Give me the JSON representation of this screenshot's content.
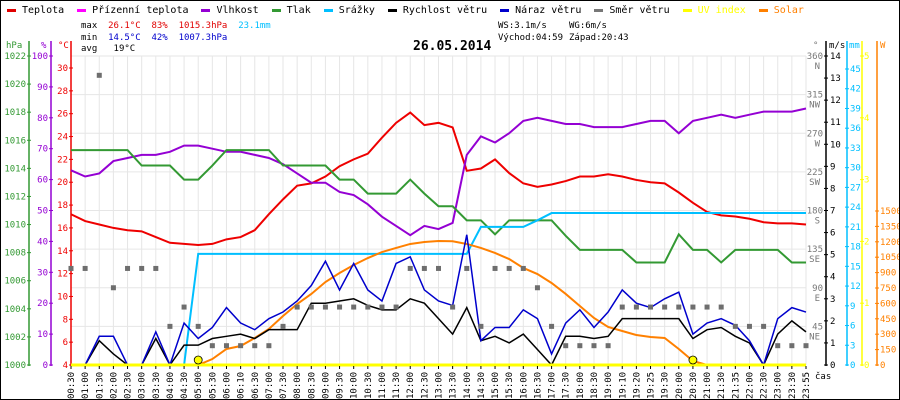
{
  "legend": [
    {
      "label": "Teplota",
      "color": "#e00000"
    },
    {
      "label": "Přízenní teplota",
      "color": "#ff00ff"
    },
    {
      "label": "Vlhkost",
      "color": "#9400d3"
    },
    {
      "label": "Tlak",
      "color": "#339933"
    },
    {
      "label": "Srážky",
      "color": "#00bfff"
    },
    {
      "label": "Rychlost větru",
      "color": "#000000"
    },
    {
      "label": "Náraz větru",
      "color": "#0000cc"
    },
    {
      "label": "Směr větru",
      "color": "#777777"
    },
    {
      "label": "UV index",
      "color": "#ffff00"
    },
    {
      "label": "Solar",
      "color": "#ff8000"
    }
  ],
  "stats": {
    "max_label": "max",
    "max_temp": "26.1°C",
    "max_hum": "83%",
    "max_press": "1015.3hPa",
    "rain_total": "23.1mm",
    "min_label": "min",
    "min_temp": "14.5°C",
    "min_hum": "42%",
    "min_press": "1007.3hPa",
    "avg_label": "avg",
    "avg_temp": "19°C",
    "ws": "WS:3.1m/s",
    "wg": "WG:6m/s",
    "sunrise": "Východ:04:59",
    "sunset": "Západ:20:43"
  },
  "chart_data": {
    "type": "line",
    "title": "26.05.2014",
    "xlabel": "čas",
    "axes": {
      "pressure": {
        "unit": "hPa",
        "range": [
          1000,
          1022
        ],
        "ticks": [
          "1000",
          "1002",
          "1004",
          "1006",
          "1008",
          "1010",
          "1012",
          "1014",
          "1016",
          "1018",
          "1020",
          "1022"
        ]
      },
      "humidity": {
        "unit": "%",
        "range": [
          0,
          100
        ],
        "ticks": [
          "0",
          "10",
          "20",
          "30",
          "40",
          "50",
          "60",
          "70",
          "80",
          "90",
          "100"
        ]
      },
      "temperature": {
        "unit": "°C",
        "range": [
          4,
          31
        ],
        "ticks": [
          "4",
          "6",
          "8",
          "10",
          "12",
          "14",
          "16",
          "18",
          "20",
          "22",
          "24",
          "26",
          "28",
          "30"
        ]
      },
      "direction": {
        "unit": "°",
        "range": [
          0,
          360
        ],
        "ticks": [
          "45",
          "90",
          "135",
          "180",
          "225",
          "270",
          "315",
          "360"
        ],
        "compass": [
          "NE",
          "E",
          "SE",
          "S",
          "SW",
          "W",
          "NW",
          "N"
        ]
      },
      "wind": {
        "unit": "m/s",
        "range": [
          0,
          14
        ],
        "ticks": [
          "0",
          "1",
          "2",
          "3",
          "4",
          "5",
          "6",
          "7",
          "8",
          "9",
          "10",
          "11",
          "12",
          "13",
          "14"
        ]
      },
      "rain": {
        "unit": "mm",
        "range": [
          0,
          47
        ],
        "ticks": [
          "0",
          "3",
          "6",
          "9",
          "12",
          "15",
          "18",
          "21",
          "24",
          "27",
          "30",
          "33",
          "36",
          "39",
          "42",
          "45"
        ]
      },
      "uv": {
        "unit": "",
        "range": [
          0,
          5
        ],
        "ticks": [
          "0",
          "1",
          "2",
          "3",
          "4",
          "5"
        ]
      },
      "solar": {
        "unit": "W",
        "range": [
          0,
          3010
        ],
        "ticks": [
          "0",
          "150",
          "300",
          "450",
          "600",
          "750",
          "900",
          "1050",
          "1200",
          "1350",
          "1500"
        ]
      }
    },
    "x": [
      "00:30",
      "01:00",
      "01:30",
      "02:00",
      "02:30",
      "03:00",
      "03:30",
      "04:00",
      "04:30",
      "05:00",
      "05:30",
      "06:00",
      "06:10",
      "06:30",
      "07:00",
      "07:30",
      "08:00",
      "08:30",
      "09:00",
      "09:30",
      "10:00",
      "10:30",
      "11:00",
      "11:30",
      "12:00",
      "12:30",
      "13:00",
      "13:30",
      "14:00",
      "14:30",
      "15:00",
      "15:30",
      "16:00",
      "16:30",
      "17:00",
      "17:30",
      "18:00",
      "18:30",
      "19:00",
      "19:10",
      "19:20",
      "19:25",
      "19:30",
      "20:00",
      "20:30",
      "21:00",
      "21:30",
      "21:35",
      "22:00",
      "22:30",
      "23:00",
      "23:30",
      "23:55"
    ],
    "series": [
      {
        "name": "Teplota",
        "axis": "temperature",
        "color": "#ee0000",
        "values": [
          17.2,
          16.6,
          16.3,
          16.0,
          15.8,
          15.7,
          15.2,
          14.7,
          14.6,
          14.5,
          14.6,
          15.0,
          15.2,
          15.8,
          17.2,
          18.5,
          19.7,
          19.9,
          20.5,
          21.4,
          22.0,
          22.5,
          23.9,
          25.2,
          26.1,
          25.0,
          25.2,
          24.8,
          21.0,
          21.2,
          22.0,
          20.8,
          19.9,
          19.6,
          19.8,
          20.1,
          20.5,
          20.5,
          20.7,
          20.5,
          20.2,
          20.0,
          19.9,
          19.1,
          18.2,
          17.4,
          17.1,
          17.0,
          16.8,
          16.5,
          16.4,
          16.4,
          16.3
        ]
      },
      {
        "name": "Vlhkost",
        "axis": "humidity",
        "color": "#9400d3",
        "values": [
          63,
          61,
          62,
          66,
          67,
          68,
          68,
          69,
          71,
          71,
          70,
          69,
          69,
          68,
          67,
          65,
          62,
          59,
          59,
          56,
          55,
          52,
          48,
          45,
          42,
          45,
          44,
          46,
          68,
          74,
          72,
          75,
          79,
          80,
          79,
          78,
          78,
          77,
          77,
          77,
          78,
          79,
          79,
          75,
          79,
          80,
          81,
          80,
          81,
          82,
          82,
          82,
          83
        ]
      },
      {
        "name": "Tlak",
        "axis": "pressure",
        "color": "#339933",
        "values": [
          1015.3,
          1015.3,
          1015.3,
          1015.3,
          1015.3,
          1014.2,
          1014.2,
          1014.2,
          1013.2,
          1013.2,
          1014.2,
          1015.3,
          1015.3,
          1015.3,
          1015.3,
          1014.2,
          1014.2,
          1014.2,
          1014.2,
          1013.2,
          1013.2,
          1012.2,
          1012.2,
          1012.2,
          1013.2,
          1012.2,
          1011.3,
          1011.3,
          1010.3,
          1010.3,
          1009.3,
          1010.3,
          1010.3,
          1010.3,
          1010.3,
          1009.2,
          1008.2,
          1008.2,
          1008.2,
          1008.2,
          1007.3,
          1007.3,
          1007.3,
          1009.3,
          1008.2,
          1008.2,
          1007.3,
          1008.2,
          1008.2,
          1008.2,
          1008.2,
          1007.3,
          1007.3
        ]
      },
      {
        "name": "Srážky",
        "axis": "rain",
        "color": "#00bfff",
        "values": [
          0,
          0,
          0,
          0,
          0,
          0,
          0,
          0,
          0,
          16.9,
          16.9,
          16.9,
          16.9,
          16.9,
          16.9,
          16.9,
          16.9,
          16.9,
          16.9,
          16.9,
          16.9,
          16.9,
          16.9,
          16.9,
          16.9,
          16.9,
          16.9,
          16.9,
          16.9,
          21.0,
          21.0,
          21.0,
          21.0,
          22.0,
          23.1,
          23.1,
          23.1,
          23.1,
          23.1,
          23.1,
          23.1,
          23.1,
          23.1,
          23.1,
          23.1,
          23.1,
          23.1,
          23.1,
          23.1,
          23.1,
          23.1,
          23.1,
          23.1
        ]
      },
      {
        "name": "Solar",
        "axis": "solar",
        "color": "#ff8000",
        "values": [
          0,
          0,
          0,
          0,
          0,
          0,
          0,
          0,
          0,
          0,
          58,
          156,
          185,
          263,
          351,
          477,
          594,
          692,
          808,
          896,
          974,
          1042,
          1100,
          1140,
          1179,
          1198,
          1208,
          1205,
          1179,
          1140,
          1091,
          1032,
          945,
          886,
          799,
          692,
          575,
          458,
          370,
          331,
          292,
          273,
          263,
          156,
          39,
          0,
          0,
          0,
          0,
          0,
          0,
          0,
          0
        ]
      },
      {
        "name": "Rychlost větru",
        "axis": "wind",
        "color": "#000000",
        "values": [
          0,
          0,
          1.1,
          0.5,
          0,
          0,
          1.2,
          0,
          0.9,
          0.9,
          1.2,
          1.3,
          1.4,
          1.2,
          1.6,
          1.6,
          1.6,
          2.8,
          2.8,
          2.9,
          3.0,
          2.7,
          2.5,
          2.5,
          3.0,
          2.8,
          2.1,
          1.4,
          2.6,
          1.1,
          1.3,
          1.0,
          1.4,
          0.7,
          0,
          1.3,
          1.3,
          1.2,
          1.3,
          2.1,
          2.1,
          2.1,
          2.1,
          2.1,
          1.2,
          1.6,
          1.7,
          1.3,
          1.0,
          0,
          1.4,
          2.0,
          1.5
        ]
      },
      {
        "name": "Náraz větru",
        "axis": "wind",
        "color": "#0000cc",
        "values": [
          0,
          0,
          1.3,
          1.3,
          0,
          0,
          1.5,
          0,
          1.9,
          1.2,
          1.7,
          2.6,
          1.9,
          1.6,
          2.1,
          2.4,
          2.9,
          3.6,
          4.7,
          3.4,
          4.6,
          3.4,
          2.9,
          4.6,
          4.9,
          3.4,
          2.9,
          2.7,
          5.9,
          1.1,
          1.7,
          1.7,
          2.5,
          2.1,
          0.5,
          1.9,
          2.5,
          1.7,
          2.4,
          3.4,
          2.8,
          2.6,
          3.0,
          3.3,
          1.4,
          1.9,
          2.1,
          1.8,
          1.1,
          0,
          2.1,
          2.6,
          2.4
        ]
      },
      {
        "name": "UV index",
        "axis": "uv",
        "color": "#ffff00",
        "values": [
          0,
          0,
          0,
          0,
          0,
          0,
          0,
          0,
          0,
          0,
          0,
          0,
          0,
          0,
          0,
          0,
          0,
          0,
          0,
          0,
          0,
          0,
          0,
          0,
          0,
          0,
          0,
          0,
          0,
          0,
          0,
          0,
          0,
          0,
          0,
          0,
          0,
          0,
          0,
          0,
          0,
          0,
          0,
          0,
          0,
          0,
          0,
          0,
          0,
          0,
          0,
          0,
          0
        ]
      }
    ],
    "wind_direction": {
      "name": "Směr větru",
      "axis": "direction",
      "color": "#6e6e6e",
      "values": [
        112.5,
        112.5,
        337.5,
        90,
        112.5,
        112.5,
        112.5,
        45,
        67.5,
        45,
        22.5,
        22.5,
        22.5,
        22.5,
        22.5,
        45,
        67.5,
        67.5,
        67.5,
        67.5,
        67.5,
        67.5,
        67.5,
        67.5,
        112.5,
        112.5,
        112.5,
        67.5,
        112.5,
        45,
        112.5,
        112.5,
        112.5,
        90,
        45,
        22.5,
        22.5,
        22.5,
        22.5,
        67.5,
        67.5,
        67.5,
        67.5,
        67.5,
        67.5,
        67.5,
        67.5,
        45,
        45,
        45,
        22.5,
        22.5,
        22.5
      ]
    },
    "sun_markers": [
      "05:00",
      "20:30"
    ]
  }
}
